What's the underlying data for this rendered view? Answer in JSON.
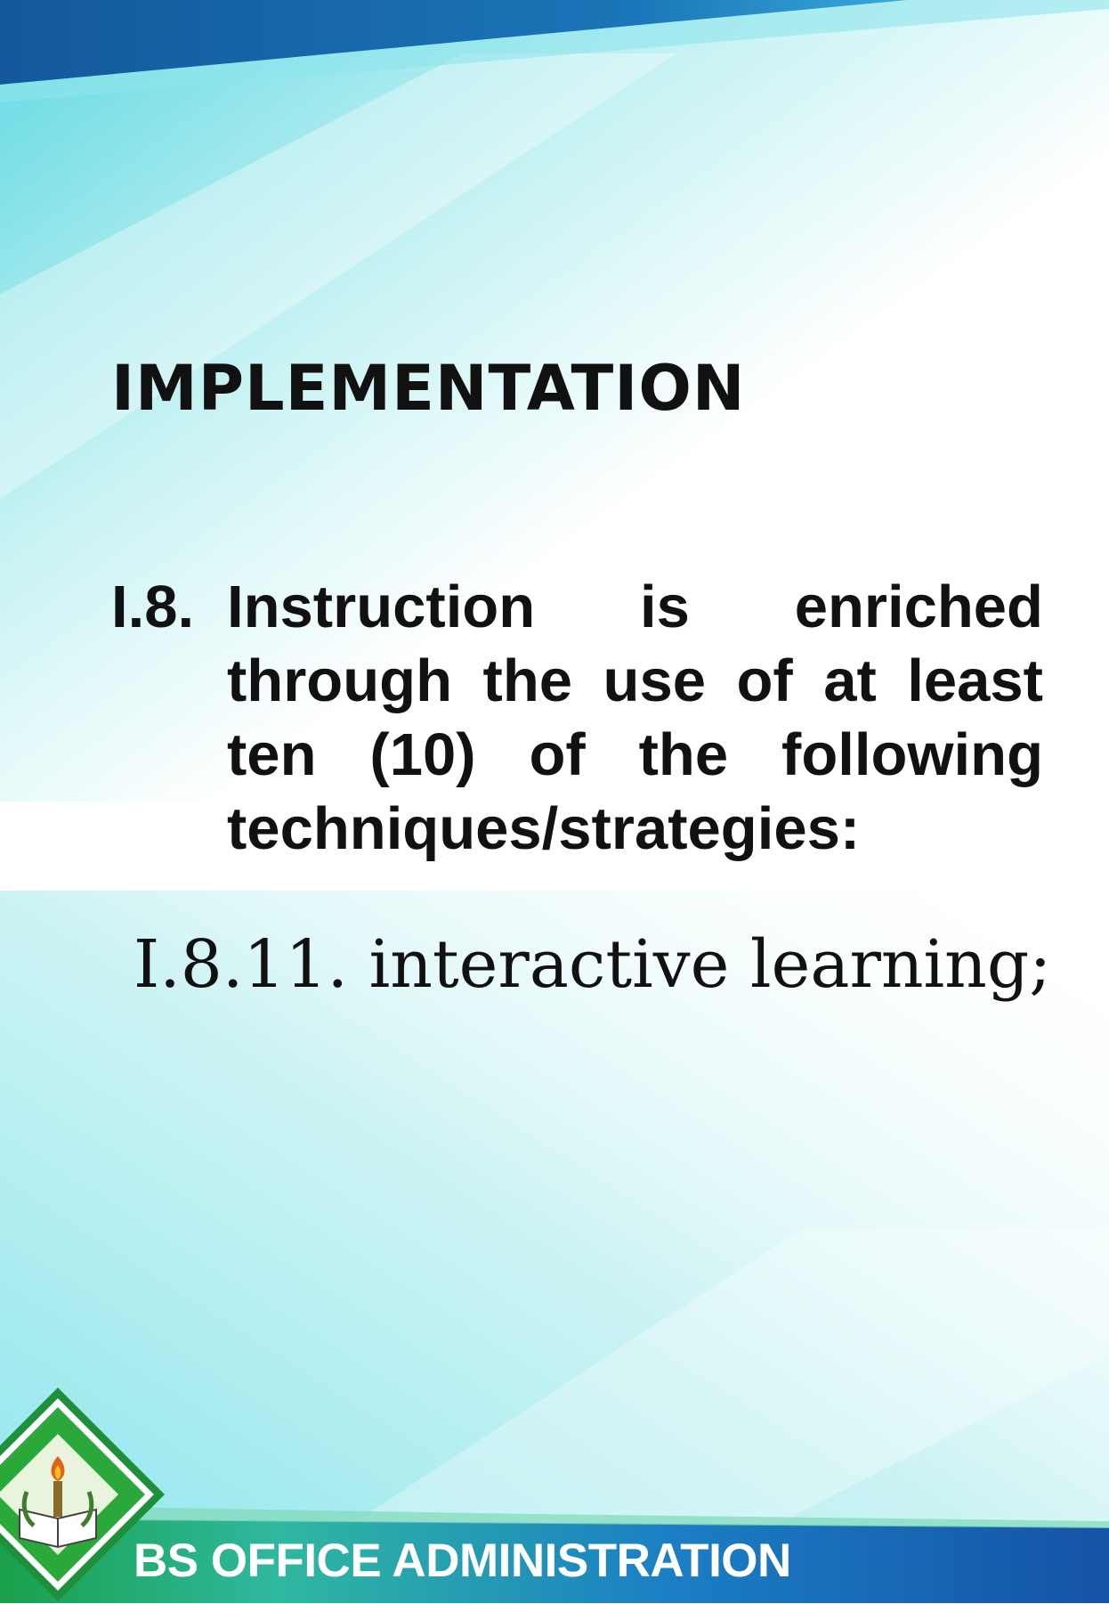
{
  "slide": {
    "title": "IMPLEMENTATION",
    "criterion_number": "I.8.",
    "criterion_text": "Instruction is enriched through the use of at least ten (10) of the following techniques/strategies:",
    "sub_item": "I.8.11. interactive learning;",
    "footer_label": "BS OFFICE ADMINISTRATION"
  },
  "colors": {
    "top_band": "#1565a8",
    "bottom_band": "#1553a6",
    "bottom_green": "#2aa83a",
    "background_teal": "#7fe3ea",
    "text": "#111111"
  },
  "icons": {
    "logo": "university-seal-icon"
  }
}
